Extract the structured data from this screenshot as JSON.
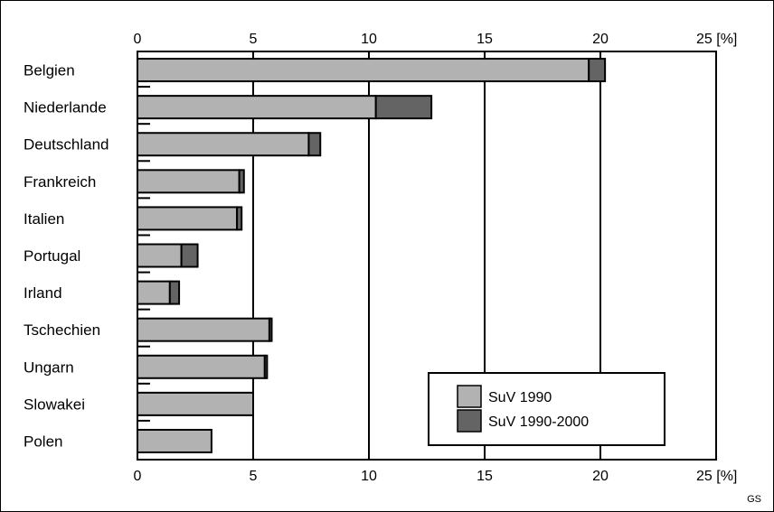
{
  "chart_data": {
    "type": "bar",
    "orientation": "horizontal",
    "stacked": true,
    "categories": [
      "Belgien",
      "Niederlande",
      "Deutschland",
      "Frankreich",
      "Italien",
      "Portugal",
      "Irland",
      "Tschechien",
      "Ungarn",
      "Slowakei",
      "Polen"
    ],
    "series": [
      {
        "name": "SuV 1990",
        "color": "#b2b2b2",
        "values": [
          19.5,
          10.3,
          7.4,
          4.4,
          4.3,
          1.9,
          1.4,
          5.7,
          5.5,
          5.0,
          3.2
        ]
      },
      {
        "name": "SuV 1990-2000",
        "color": "#646464",
        "values": [
          0.7,
          2.4,
          0.5,
          0.2,
          0.2,
          0.7,
          0.4,
          0.1,
          0.1,
          0.0,
          0.0
        ]
      }
    ],
    "xlim": [
      0,
      25
    ],
    "xticks": [
      "0",
      "5",
      "10",
      "15",
      "20",
      "25 [%]"
    ],
    "grid": true,
    "legend_position": "bottom-right",
    "credit": "GS"
  }
}
